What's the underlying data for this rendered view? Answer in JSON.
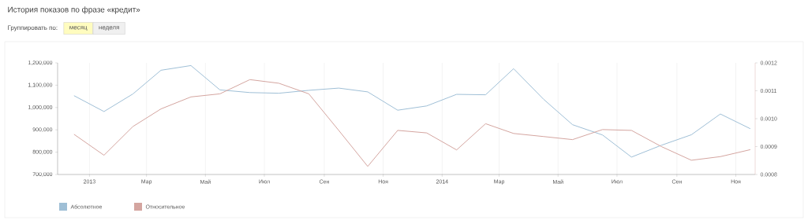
{
  "chart_data": {
    "type": "line",
    "title": "История показов по фразе «кредит»",
    "annotations": [
      "Группировать по:",
      "месяц",
      "неделя"
    ],
    "x": [
      "2012-12-16",
      "2013-01-16",
      "2013-02-15",
      "2013-03-16",
      "2013-04-16",
      "2013-05-16",
      "2013-06-16",
      "2013-07-16",
      "2013-08-16",
      "2013-09-16",
      "2013-10-16",
      "2013-11-16",
      "2013-12-16",
      "2014-01-16",
      "2014-02-15",
      "2014-03-16",
      "2014-04-16",
      "2014-05-16",
      "2014-06-16",
      "2014-07-16",
      "2014-08-16",
      "2014-09-16",
      "2014-10-16",
      "2014-11-16"
    ],
    "xlim": [
      "2012-11-29",
      "2014-11-21"
    ],
    "xticks": [
      {
        "value": "2013-01",
        "label": "2013"
      },
      {
        "value": "2013-03",
        "label": "Мар"
      },
      {
        "value": "2013-05",
        "label": "Май"
      },
      {
        "value": "2013-07",
        "label": "Июл"
      },
      {
        "value": "2013-09",
        "label": "Сен"
      },
      {
        "value": "2013-11",
        "label": "Ноя"
      },
      {
        "value": "2014-01",
        "label": "2014"
      },
      {
        "value": "2014-03",
        "label": "Мар"
      },
      {
        "value": "2014-05",
        "label": "Май"
      },
      {
        "value": "2014-07",
        "label": "Июл"
      },
      {
        "value": "2014-09",
        "label": "Сен"
      },
      {
        "value": "2014-11",
        "label": "Ноя"
      }
    ],
    "ylim": [
      700000,
      1200000
    ],
    "yticks": [
      {
        "value": 700000,
        "label": "700,000"
      },
      {
        "value": 800000,
        "label": "800,000"
      },
      {
        "value": 900000,
        "label": "900,000"
      },
      {
        "value": 1000000,
        "label": "1,000,000"
      },
      {
        "value": 1100000,
        "label": "1,100,000"
      },
      {
        "value": 1200000,
        "label": "1,200,000"
      }
    ],
    "y2lim": [
      0.0008,
      0.0012
    ],
    "y2ticks": [
      {
        "value": 0.0008,
        "label": "0.0008"
      },
      {
        "value": 0.0009,
        "label": "0.0009"
      },
      {
        "value": 0.001,
        "label": "0.0010"
      },
      {
        "value": 0.0011,
        "label": "0.0011"
      },
      {
        "value": 0.0012,
        "label": "0.0012"
      }
    ],
    "grid": "x",
    "legend": "bottom",
    "series": [
      {
        "name": "Абсолютное",
        "color": "#9fbfd6",
        "values": [
          1053000,
          982000,
          1061000,
          1167000,
          1188000,
          1079000,
          1067000,
          1064000,
          1077000,
          1087000,
          1070000,
          988000,
          1007000,
          1059000,
          1057000,
          1174000,
          1037000,
          923000,
          877000,
          778000,
          831000,
          878000,
          971000,
          905000
        ]
      },
      {
        "name": "Относительное",
        "color": "#d4a5a0",
        "axis": "y2",
        "values": [
          0.000944,
          0.000869,
          0.000972,
          0.001035,
          0.001078,
          0.001089,
          0.00114,
          0.001127,
          0.001089,
          0.000958,
          0.000829,
          0.000958,
          0.000949,
          0.000888,
          0.000982,
          0.000947,
          0.000936,
          0.000925,
          0.000961,
          0.000958,
          0.0009,
          0.000851,
          0.000864,
          0.000889
        ]
      }
    ]
  }
}
